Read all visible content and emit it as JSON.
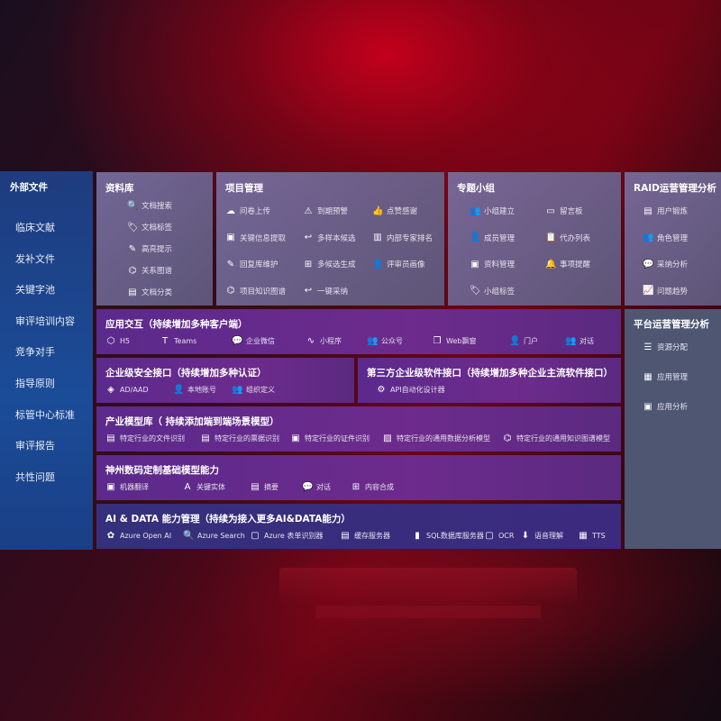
{
  "external_files": {
    "title": "外部文件",
    "items": [
      "临床文献",
      "发补文件",
      "关键字池",
      "审评培训内容",
      "竞争对手",
      "指导原则",
      "标管中心标准",
      "审评报告",
      "共性问题"
    ]
  },
  "library": {
    "title": "资料库",
    "items": [
      {
        "icon": "document-search-icon",
        "glyph": "🔍",
        "label": "文档搜索"
      },
      {
        "icon": "tag-icon",
        "glyph": "🏷",
        "label": "文档标签"
      },
      {
        "icon": "pen-icon",
        "glyph": "✎",
        "label": "高亮提示"
      },
      {
        "icon": "graph-icon",
        "glyph": "⌬",
        "label": "关系图谱"
      },
      {
        "icon": "document-classify-icon",
        "glyph": "▤",
        "label": "文档分类"
      }
    ]
  },
  "project": {
    "title": "项目管理",
    "items": [
      {
        "icon": "cloud-upload-icon",
        "glyph": "☁",
        "label": "问卷上传"
      },
      {
        "icon": "alarm-icon",
        "glyph": "⚠",
        "label": "到期预警"
      },
      {
        "icon": "thumbs-up-icon",
        "glyph": "👍",
        "label": "点赞感谢"
      },
      {
        "icon": "info-extract-icon",
        "glyph": "▣",
        "label": "关键信息提取"
      },
      {
        "icon": "reply-icon",
        "glyph": "↩",
        "label": "多样本候选"
      },
      {
        "icon": "ranking-icon",
        "glyph": "▥",
        "label": "内部专家排名"
      },
      {
        "icon": "edit-icon",
        "glyph": "✎",
        "label": "回复库维护"
      },
      {
        "icon": "puzzle-icon",
        "glyph": "⊞",
        "label": "多候选生成"
      },
      {
        "icon": "user-icon",
        "glyph": "👤",
        "label": "评审员画像"
      },
      {
        "icon": "knowledge-graph-icon",
        "glyph": "⌬",
        "label": "项目知识图谱"
      },
      {
        "icon": "reply-icon",
        "glyph": "↩",
        "label": "一键采纳"
      }
    ]
  },
  "topic_group": {
    "title": "专题小组",
    "items": [
      {
        "icon": "group-icon",
        "glyph": "👥",
        "label": "小组建立"
      },
      {
        "icon": "bbs-icon",
        "glyph": "▭",
        "label": "留言板"
      },
      {
        "icon": "member-icon",
        "glyph": "👤",
        "label": "成员管理"
      },
      {
        "icon": "clipboard-icon",
        "glyph": "📋",
        "label": "代办列表"
      },
      {
        "icon": "folder-icon",
        "glyph": "▣",
        "label": "资料管理"
      },
      {
        "icon": "bell-icon",
        "glyph": "🔔",
        "label": "事项提醒"
      },
      {
        "icon": "tag-icon",
        "glyph": "🏷",
        "label": "小组标签"
      }
    ]
  },
  "raid": {
    "title": "RAID运营管理分析",
    "items": [
      {
        "icon": "id-card-icon",
        "glyph": "▤",
        "label": "用户锻炼"
      },
      {
        "icon": "users-icon",
        "glyph": "👥",
        "label": "角色管理"
      },
      {
        "icon": "qa-icon",
        "glyph": "💬",
        "label": "采纳分析"
      },
      {
        "icon": "trend-icon",
        "glyph": "📈",
        "label": "问题趋势"
      }
    ]
  },
  "platform": {
    "title": "平台运营管理分析",
    "items": [
      {
        "icon": "list-check-icon",
        "glyph": "☰",
        "label": "资源分配"
      },
      {
        "icon": "apps-icon",
        "glyph": "▦",
        "label": "应用管理"
      },
      {
        "icon": "app-analysis-icon",
        "glyph": "▣",
        "label": "应用分析"
      }
    ]
  },
  "app_interaction": {
    "title": "应用交互（持续增加多种客户端）",
    "items": [
      {
        "icon": "html5-icon",
        "glyph": "⬡",
        "label": "H5"
      },
      {
        "icon": "teams-icon",
        "glyph": "T",
        "label": "Teams"
      },
      {
        "icon": "wechat-icon",
        "glyph": "💬",
        "label": "企业微信"
      },
      {
        "icon": "miniprogram-icon",
        "glyph": "∿",
        "label": "小程序"
      },
      {
        "icon": "public-account-icon",
        "glyph": "👥",
        "label": "公众号"
      },
      {
        "icon": "window-icon",
        "glyph": "❐",
        "label": "Web飘窗"
      },
      {
        "icon": "portal-icon",
        "glyph": "👤",
        "label": "门户"
      },
      {
        "icon": "chat-icon",
        "glyph": "👥",
        "label": "对话"
      }
    ]
  },
  "security": {
    "title": "企业级安全接口（持续增加多种认证）",
    "items": [
      {
        "icon": "ad-icon",
        "glyph": "◈",
        "label": "AD/AAD"
      },
      {
        "icon": "local-account-icon",
        "glyph": "👤",
        "label": "本地账号"
      },
      {
        "icon": "org-icon",
        "glyph": "👥",
        "label": "组织定义"
      }
    ]
  },
  "third_party": {
    "title": "第三方企业级软件接口（持续增加多种企业主流软件接口）",
    "items": [
      {
        "icon": "api-gear-icon",
        "glyph": "⚙",
        "label": "API自动化设计器"
      }
    ]
  },
  "industry": {
    "title": "产业模型库（ 持续添加端到端场景模型）",
    "items": [
      {
        "icon": "file-icon",
        "glyph": "▤",
        "label": "特定行业的文件识别"
      },
      {
        "icon": "receipt-icon",
        "glyph": "▤",
        "label": "特定行业的票据识别"
      },
      {
        "icon": "certificate-icon",
        "glyph": "▣",
        "label": "特定行业的证件识别"
      },
      {
        "icon": "data-analysis-icon",
        "glyph": "▨",
        "label": "特定行业的通用数据分析模型"
      },
      {
        "icon": "knowledge-graph-icon",
        "glyph": "⌬",
        "label": "特定行业的通用知识图谱模型"
      }
    ]
  },
  "base_model": {
    "title": "神州数码定制基础模型能力",
    "items": [
      {
        "icon": "translate-icon",
        "glyph": "▣",
        "label": "机器翻译"
      },
      {
        "icon": "entity-icon",
        "glyph": "A",
        "label": "关键实体"
      },
      {
        "icon": "summary-icon",
        "glyph": "▤",
        "label": "摘要"
      },
      {
        "icon": "dialog-icon",
        "glyph": "💬",
        "label": "对话"
      },
      {
        "icon": "synthesis-icon",
        "glyph": "⊞",
        "label": "内容合成"
      }
    ]
  },
  "ai_data": {
    "title": "AI & DATA 能力管理（持续为接入更多AI&DATA能力）",
    "items": [
      {
        "icon": "openai-icon",
        "glyph": "✿",
        "label": "Azure Open AI"
      },
      {
        "icon": "search-icon",
        "glyph": "🔍",
        "label": "Azure Search"
      },
      {
        "icon": "form-recognizer-icon",
        "glyph": "▢",
        "label": "Azure 表单识别器"
      },
      {
        "icon": "cache-server-icon",
        "glyph": "▤",
        "label": "缓存服务器"
      },
      {
        "icon": "sql-icon",
        "glyph": "▮",
        "label": "SQL数据库服务器"
      },
      {
        "icon": "ocr-icon",
        "glyph": "▢",
        "label": "OCR"
      },
      {
        "icon": "speech-icon",
        "glyph": "⬇",
        "label": "语音理解"
      },
      {
        "icon": "tts-icon",
        "glyph": "▦",
        "label": "TTS"
      }
    ]
  }
}
